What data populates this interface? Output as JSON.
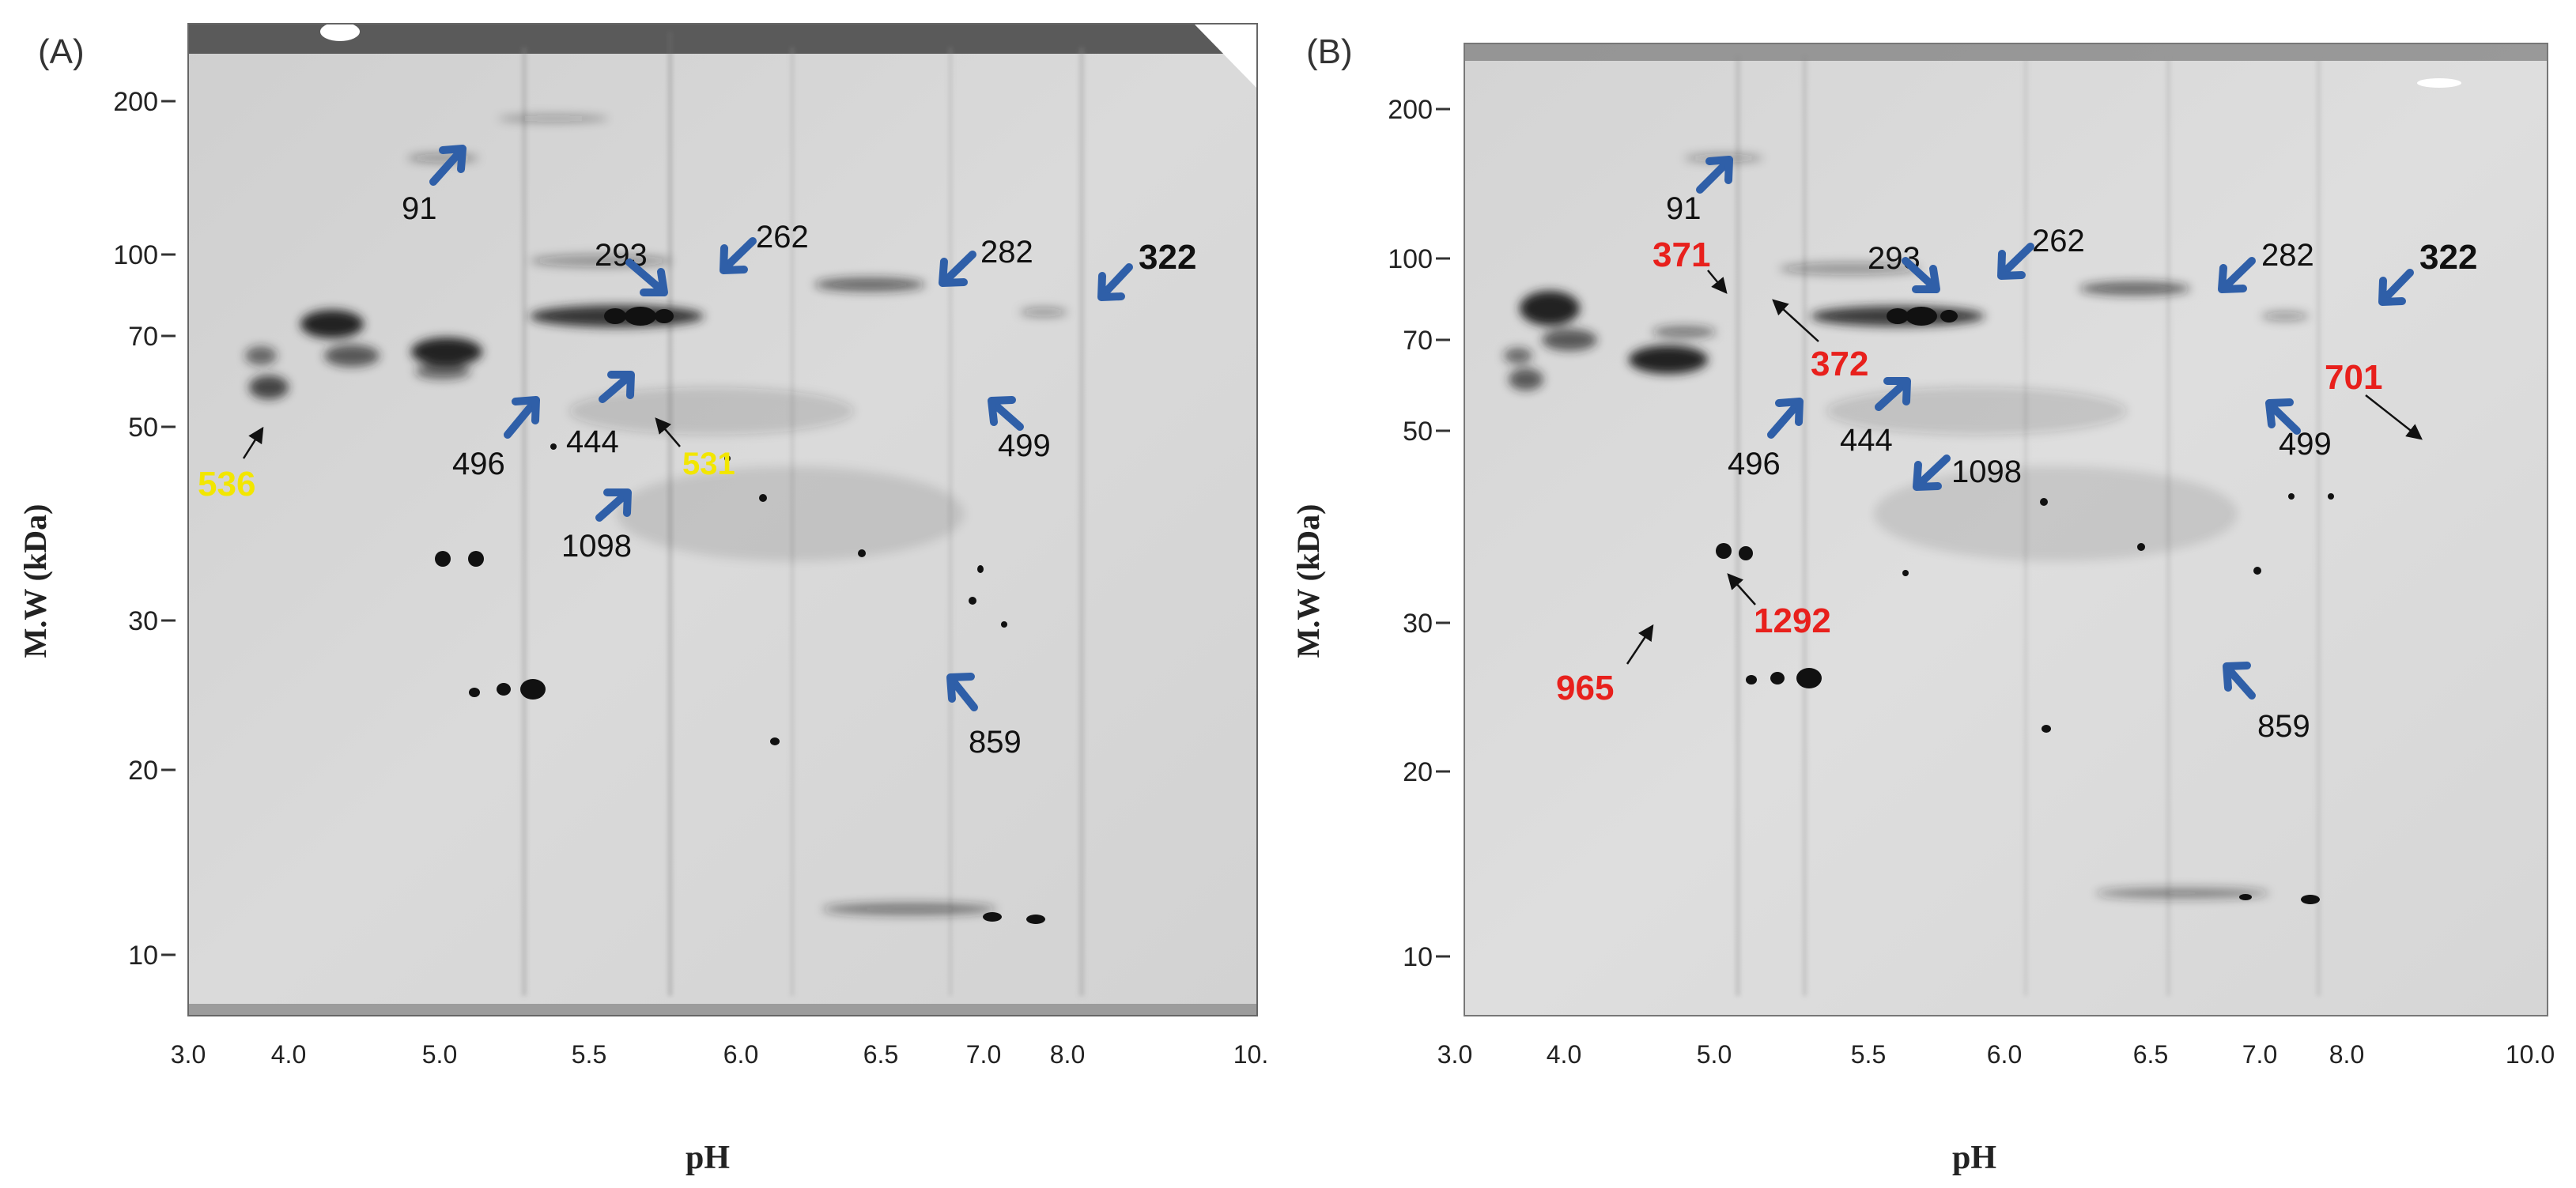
{
  "panels": [
    {
      "id": "A",
      "label": "(A)",
      "y_axis_label": "M.W (kDa)",
      "x_axis_label": "pH",
      "mw_ticks": [
        "200",
        "100",
        "70",
        "50",
        "30",
        "20",
        "10"
      ],
      "ph_ticks": [
        "3.0",
        "4.0",
        "5.0",
        "5.5",
        "6.0",
        "6.5",
        "7.0",
        "8.0",
        "10."
      ],
      "spot_labels": [
        {
          "text": "91",
          "color": "#111111"
        },
        {
          "text": "293",
          "color": "#111111"
        },
        {
          "text": "262",
          "color": "#111111"
        },
        {
          "text": "282",
          "color": "#111111"
        },
        {
          "text": "322",
          "color": "#111111"
        },
        {
          "text": "496",
          "color": "#111111"
        },
        {
          "text": "444",
          "color": "#111111"
        },
        {
          "text": "531",
          "color": "#f2e600"
        },
        {
          "text": "499",
          "color": "#111111"
        },
        {
          "text": "536",
          "color": "#f2e600"
        },
        {
          "text": "1098",
          "color": "#111111"
        },
        {
          "text": "859",
          "color": "#111111"
        }
      ]
    },
    {
      "id": "B",
      "label": "(B)",
      "y_axis_label": "M.W (kDa)",
      "x_axis_label": "pH",
      "mw_ticks": [
        "200",
        "100",
        "70",
        "50",
        "30",
        "20",
        "10"
      ],
      "ph_ticks": [
        "3.0",
        "4.0",
        "5.0",
        "5.5",
        "6.0",
        "6.5",
        "7.0",
        "8.0",
        "10.0"
      ],
      "spot_labels": [
        {
          "text": "91",
          "color": "#111111"
        },
        {
          "text": "371",
          "color": "#e8201c"
        },
        {
          "text": "293",
          "color": "#111111"
        },
        {
          "text": "262",
          "color": "#111111"
        },
        {
          "text": "282",
          "color": "#111111"
        },
        {
          "text": "322",
          "color": "#111111"
        },
        {
          "text": "372",
          "color": "#e8201c"
        },
        {
          "text": "701",
          "color": "#e8201c"
        },
        {
          "text": "496",
          "color": "#111111"
        },
        {
          "text": "444",
          "color": "#111111"
        },
        {
          "text": "499",
          "color": "#111111"
        },
        {
          "text": "1098",
          "color": "#111111"
        },
        {
          "text": "1292",
          "color": "#e8201c"
        },
        {
          "text": "965",
          "color": "#e8201c"
        },
        {
          "text": "859",
          "color": "#111111"
        }
      ]
    }
  ],
  "colors": {
    "arrow_blue": "#2f5fa8",
    "label_black": "#111111",
    "label_yellow": "#f2e600",
    "label_red": "#e8201c",
    "gel_background": "#d6d6d6"
  }
}
